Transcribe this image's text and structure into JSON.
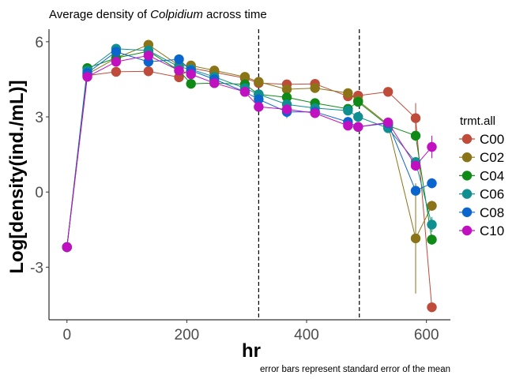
{
  "chart_data": {
    "type": "line",
    "title_prefix": "Average density of ",
    "title_italic": "Colpidium",
    "title_suffix": " across time",
    "xlabel": "hr",
    "ylabel": "Log[density(ind./mL)]",
    "caption": "error bars represent standard error of the mean",
    "xlim": [
      -30,
      640
    ],
    "ylim": [
      -5.1,
      6.5
    ],
    "x_ticks": [
      0,
      200,
      400,
      600
    ],
    "y_ticks": [
      -3,
      0,
      3,
      6
    ],
    "x_tick_labels": [
      "0",
      "200",
      "400",
      "600"
    ],
    "y_tick_labels": [
      "-3",
      "0",
      "3",
      "6"
    ],
    "vlines": [
      320,
      488
    ],
    "grid": false,
    "legend_title": "trmt.all",
    "legend_position": "right",
    "x": [
      0,
      34,
      82,
      136,
      187,
      207,
      246,
      297,
      320,
      367,
      414,
      469,
      486,
      536,
      582,
      609
    ],
    "series": [
      {
        "name": "C00",
        "color": "#bf4b3a",
        "values": [
          -2.2,
          4.65,
          4.8,
          4.82,
          4.58,
          4.95,
          4.78,
          4.55,
          4.35,
          4.3,
          4.32,
          3.82,
          3.85,
          4.0,
          2.95,
          -4.6
        ],
        "errors": [
          0,
          0.1,
          0.1,
          0.1,
          0.15,
          0.1,
          0.1,
          0.1,
          0.1,
          0.1,
          0.1,
          0.1,
          0.1,
          0.1,
          0.6,
          0.1
        ]
      },
      {
        "name": "C02",
        "color": "#8a7417",
        "values": [
          -2.2,
          4.7,
          5.35,
          5.88,
          5.05,
          5.05,
          4.85,
          4.6,
          4.4,
          4.1,
          4.15,
          3.95,
          3.65,
          2.7,
          -1.85,
          -0.55
        ],
        "errors": [
          0,
          0.1,
          0.15,
          0.1,
          0.1,
          0.1,
          0.1,
          0.1,
          0.1,
          0.1,
          0.1,
          0.1,
          0.1,
          0.1,
          2.2,
          0.2
        ]
      },
      {
        "name": "C04",
        "color": "#0f8a17",
        "values": [
          -2.2,
          4.95,
          5.35,
          5.62,
          4.85,
          4.32,
          4.35,
          4.3,
          3.9,
          3.78,
          3.55,
          3.32,
          3.6,
          2.65,
          2.25,
          -1.9
        ],
        "errors": [
          0,
          0.1,
          0.1,
          0.1,
          0.1,
          0.1,
          0.1,
          0.1,
          0.1,
          0.1,
          0.1,
          0.1,
          0.1,
          0.1,
          0.2,
          0.2
        ]
      },
      {
        "name": "C06",
        "color": "#0f8f8f",
        "values": [
          -2.2,
          4.85,
          5.72,
          5.65,
          5.0,
          4.9,
          4.6,
          4.15,
          3.9,
          3.5,
          3.35,
          3.25,
          3.0,
          2.55,
          1.2,
          -1.3
        ],
        "errors": [
          0,
          0.1,
          0.1,
          0.1,
          0.1,
          0.1,
          0.1,
          0.1,
          0.1,
          0.1,
          0.1,
          0.1,
          0.1,
          0.1,
          0.2,
          0.3
        ]
      },
      {
        "name": "C08",
        "color": "#0a66cc",
        "values": [
          -2.2,
          4.75,
          5.6,
          5.2,
          5.3,
          4.85,
          4.5,
          4.0,
          3.7,
          3.2,
          3.2,
          2.8,
          2.6,
          2.75,
          0.05,
          0.35
        ],
        "errors": [
          0,
          0.1,
          0.1,
          0.1,
          0.1,
          0.1,
          0.1,
          0.1,
          0.1,
          0.25,
          0.1,
          0.1,
          0.1,
          0.1,
          0.1,
          0.2
        ]
      },
      {
        "name": "C10",
        "color": "#c010c0",
        "values": [
          -2.2,
          4.6,
          5.2,
          5.45,
          4.85,
          4.7,
          4.35,
          4.0,
          3.4,
          3.3,
          3.15,
          2.65,
          2.6,
          2.78,
          1.05,
          1.8
        ],
        "errors": [
          0,
          0.1,
          0.1,
          0.1,
          0.1,
          0.1,
          0.1,
          0.1,
          0.1,
          0.1,
          0.1,
          0.1,
          0.1,
          0.1,
          0.2,
          0.45
        ]
      }
    ]
  }
}
